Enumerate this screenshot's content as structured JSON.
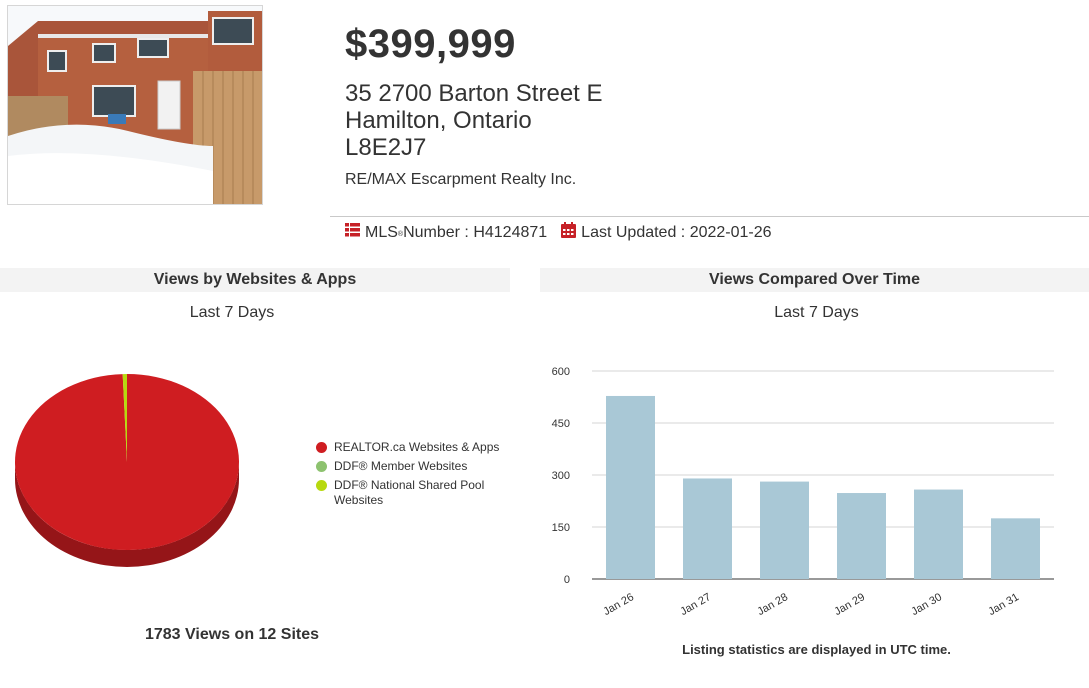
{
  "listing": {
    "price": "$399,999",
    "address_line1": "35 2700 Barton Street E",
    "address_line2": "Hamilton, Ontario",
    "postal_code": "L8E2J7",
    "brokerage": "RE/MAX Escarpment Realty Inc.",
    "mls_label": "MLS",
    "mls_reg": "®",
    "mls_text": " Number : H4124871",
    "updated_text": "Last Updated : 2022-01-26",
    "photo_icon": "house-photo",
    "mls_icon": "list-icon",
    "updated_icon": "calendar-icon"
  },
  "left_panel": {
    "title": "Views by Websites & Apps",
    "subtitle": "Last 7 Days",
    "total_text": "1783 Views on 12 Sites"
  },
  "right_panel": {
    "title": "Views Compared Over Time",
    "subtitle": "Last 7 Days",
    "note": "Listing statistics are displayed in UTC time."
  },
  "chart_data": [
    {
      "type": "pie",
      "legend_position": "right",
      "series": [
        {
          "name": "REALTOR.ca Websites & Apps",
          "value": 1772,
          "color": "#cf1d21"
        },
        {
          "name": "DDF® Member Websites",
          "value": 0,
          "color": "#8dc26f"
        },
        {
          "name": "DDF® National Shared Pool Websites",
          "value": 11,
          "color": "#b7d90f"
        }
      ]
    },
    {
      "type": "bar",
      "categories": [
        "Jan 26",
        "Jan 27",
        "Jan 28",
        "Jan 29",
        "Jan 30",
        "Jan 31"
      ],
      "values": [
        528,
        290,
        281,
        248,
        258,
        175
      ],
      "color": "#a9c8d6",
      "ylim": [
        0,
        600
      ],
      "yticks": [
        0,
        150,
        300,
        450,
        600
      ],
      "grid": true
    }
  ]
}
